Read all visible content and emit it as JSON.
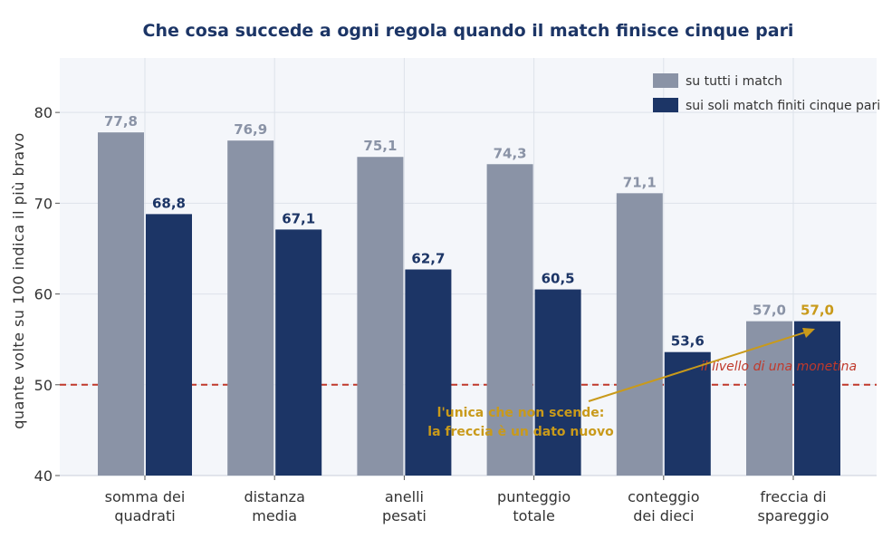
{
  "chart_data": {
    "type": "bar",
    "title": "Che cosa succede a ogni regola quando il match finisce cinque pari",
    "ylabel": "quante volte su 100 indica il più bravo",
    "xlabel": "",
    "ylim": [
      40,
      86
    ],
    "yticks": [
      40,
      50,
      60,
      70,
      80
    ],
    "grid": true,
    "legend_position": "top-right",
    "categories": [
      [
        "somma dei",
        "quadrati"
      ],
      [
        "distanza",
        "media"
      ],
      [
        "anelli",
        "pesati"
      ],
      [
        "punteggio",
        "totale"
      ],
      [
        "conteggio",
        "dei dieci"
      ],
      [
        "freccia di",
        "spareggio"
      ]
    ],
    "series": [
      {
        "name": "su tutti i match",
        "color": "#8a93a6",
        "values": [
          77.8,
          76.9,
          75.1,
          74.3,
          71.1,
          57.0
        ],
        "labels": [
          "77,8",
          "76,9",
          "75,1",
          "74,3",
          "71,1",
          "57,0"
        ]
      },
      {
        "name": "sui soli match finiti cinque pari",
        "color": "#1c3566",
        "values": [
          68.8,
          67.1,
          62.7,
          60.5,
          53.6,
          57.0
        ],
        "labels": [
          "68,8",
          "67,1",
          "62,7",
          "60,5",
          "53,6",
          "57,0"
        ]
      }
    ],
    "highlight_label_color": "#c99a1a",
    "reference_line": {
      "value": 50,
      "label": "il livello di una monetina",
      "color": "#c0392b"
    },
    "annotation": {
      "lines": [
        "l'unica che non scende:",
        "la freccia è un dato nuovo"
      ],
      "color": "#c99a1a"
    }
  }
}
